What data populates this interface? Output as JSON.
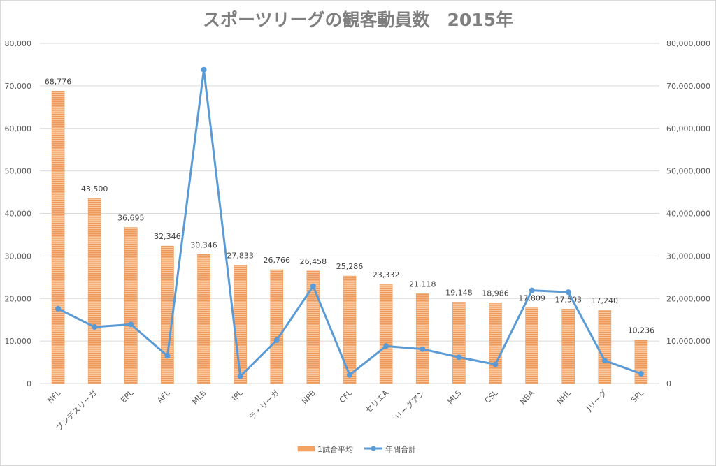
{
  "chart_data": {
    "type": "bar+line",
    "title": "スポーツリーグの観客動員数　2015年",
    "categories": [
      "NFL",
      "ブンデスリーガ",
      "EPL",
      "AFL",
      "MLB",
      "IPL",
      "ラ・リーガ",
      "NPB",
      "CFL",
      "セリエA",
      "リーグアン",
      "MLS",
      "CSL",
      "NBA",
      "NHL",
      "Jリーグ",
      "SPL"
    ],
    "series": [
      {
        "name": "1試合平均",
        "type": "bar",
        "axis": "left",
        "color": "#f4a460",
        "values": [
          68776,
          43500,
          36695,
          32346,
          30346,
          27833,
          26766,
          26458,
          25286,
          23332,
          21118,
          19148,
          18986,
          17809,
          17503,
          17240,
          10236
        ],
        "labels": [
          "68,776",
          "43,500",
          "36,695",
          "32,346",
          "30,346",
          "27,833",
          "26,766",
          "26,458",
          "25,286",
          "23,332",
          "21,118",
          "19,148",
          "18,986",
          "17,809",
          "17,503",
          "17,240",
          "10,236"
        ]
      },
      {
        "name": "年間合計",
        "type": "line",
        "axis": "right",
        "color": "#5b9bd5",
        "values": [
          17600000,
          13300000,
          13900000,
          6500000,
          73800000,
          1700000,
          10200000,
          22900000,
          2000000,
          8800000,
          8100000,
          6200000,
          4500000,
          21900000,
          21500000,
          5400000,
          2300000
        ]
      }
    ],
    "y_left": {
      "range": [
        0,
        80000
      ],
      "ticks": [
        "0",
        "10,000",
        "20,000",
        "30,000",
        "40,000",
        "50,000",
        "60,000",
        "70,000",
        "80,000"
      ]
    },
    "y_right": {
      "range": [
        0,
        80000000
      ],
      "ticks": [
        "0",
        "10,000,000",
        "20,000,000",
        "30,000,000",
        "40,000,000",
        "50,000,000",
        "60,000,000",
        "70,000,000",
        "80,000,000"
      ]
    },
    "grid": true,
    "legend": "bottom"
  }
}
